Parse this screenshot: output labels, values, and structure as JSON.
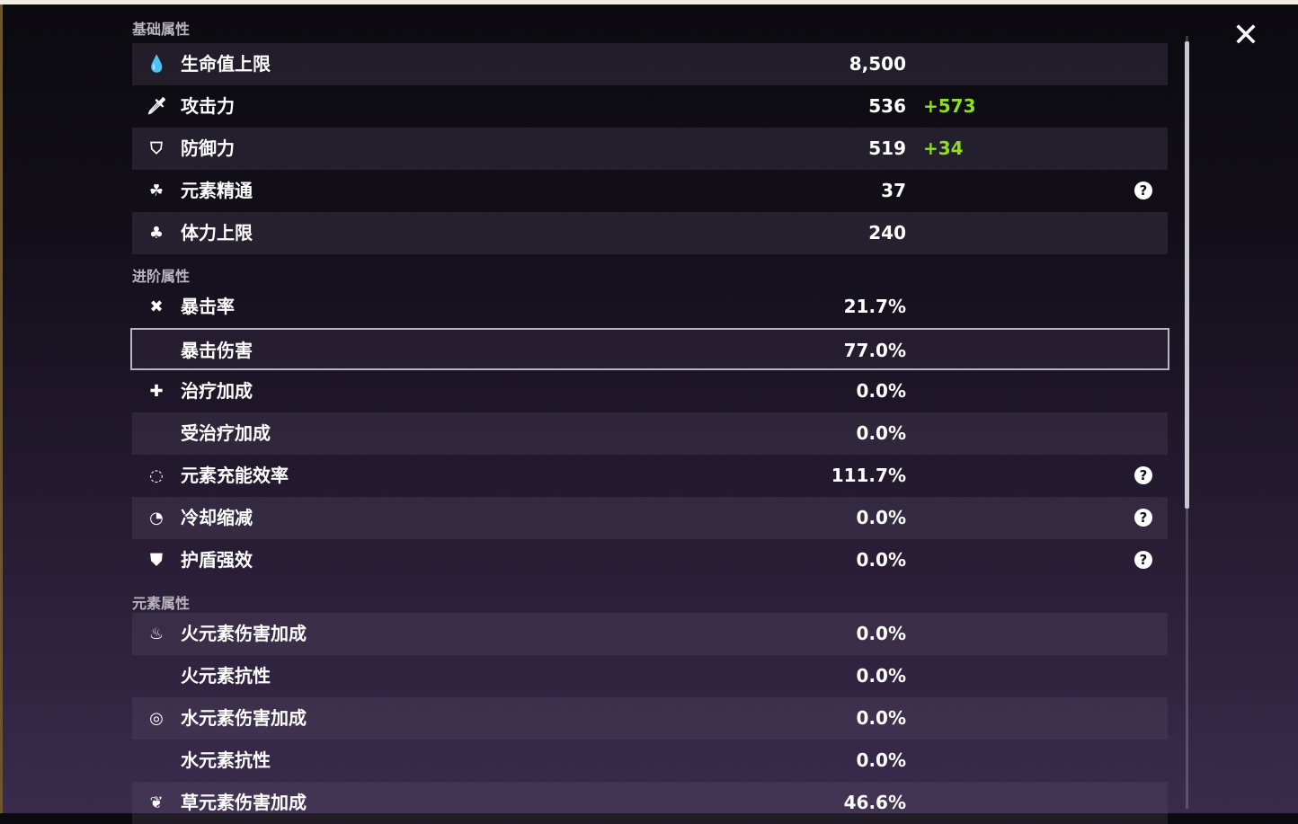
{
  "close_icon": "close-x",
  "colors": {
    "bonus": "#8fde1f",
    "highlight_border": "#b8b6bd"
  },
  "sections": [
    {
      "title": "基础属性",
      "rows": [
        {
          "icon": "hp-drop",
          "glyph": "💧",
          "label": "生命值上限",
          "value": "8,500"
        },
        {
          "icon": "sword",
          "glyph": "🗡",
          "label": "攻击力",
          "value": "536",
          "bonus": "+573"
        },
        {
          "icon": "shield",
          "glyph": "⛉",
          "label": "防御力",
          "value": "519",
          "bonus": "+34"
        },
        {
          "icon": "elemental-mastery",
          "glyph": "☘",
          "label": "元素精通",
          "value": "37",
          "help": true
        },
        {
          "icon": "stamina",
          "glyph": "♣",
          "label": "体力上限",
          "value": "240"
        }
      ]
    },
    {
      "title": "进阶属性",
      "rows": [
        {
          "icon": "crit-rate",
          "glyph": "✖",
          "label": "暴击率",
          "value": "21.7%"
        },
        {
          "icon": "crit-dmg",
          "glyph": "",
          "label": "暴击伤害",
          "value": "77.0%",
          "selected": true
        },
        {
          "icon": "healing",
          "glyph": "✚",
          "label": "治疗加成",
          "value": "0.0%"
        },
        {
          "icon": "",
          "glyph": "",
          "label": "受治疗加成",
          "value": "0.0%"
        },
        {
          "icon": "energy-recharge",
          "glyph": "◌",
          "label": "元素充能效率",
          "value": "111.7%",
          "help": true
        },
        {
          "icon": "cooldown",
          "glyph": "◔",
          "label": "冷却缩减",
          "value": "0.0%",
          "help": true
        },
        {
          "icon": "shield-strength",
          "glyph": "⛊",
          "label": "护盾强效",
          "value": "0.0%",
          "help": true
        }
      ]
    },
    {
      "title": "元素属性",
      "rows": [
        {
          "icon": "pyro",
          "glyph": "♨",
          "label": "火元素伤害加成",
          "value": "0.0%"
        },
        {
          "icon": "",
          "glyph": "",
          "label": "火元素抗性",
          "value": "0.0%"
        },
        {
          "icon": "hydro",
          "glyph": "◎",
          "label": "水元素伤害加成",
          "value": "0.0%"
        },
        {
          "icon": "",
          "glyph": "",
          "label": "水元素抗性",
          "value": "0.0%"
        },
        {
          "icon": "dendro",
          "glyph": "❦",
          "label": "草元素伤害加成",
          "value": "46.6%"
        }
      ]
    }
  ]
}
